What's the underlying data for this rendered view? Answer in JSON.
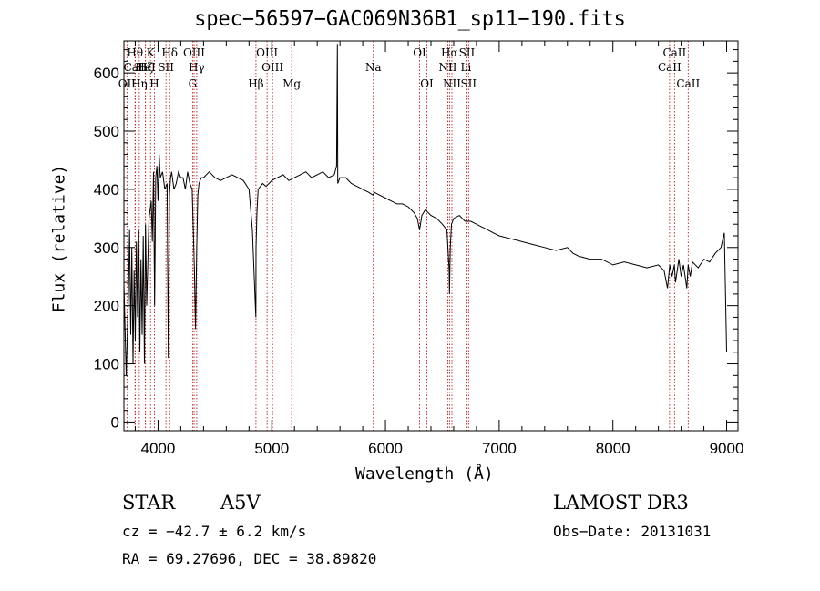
{
  "chart_data": {
    "type": "line",
    "title": "spec−56597−GAC069N36B1_sp11−190.fits",
    "xlabel": "Wavelength (Å)",
    "ylabel": "Flux (relative)",
    "xlim": [
      3700,
      9100
    ],
    "ylim": [
      -15,
      655
    ],
    "x_ticks": [
      4000,
      5000,
      6000,
      7000,
      8000,
      9000
    ],
    "y_ticks": [
      0,
      100,
      200,
      300,
      400,
      500,
      600
    ],
    "grid": false,
    "line_color": "#000000",
    "marker_color": "#b22222",
    "series": [
      {
        "x": [
          3700,
          3720,
          3740,
          3750,
          3760,
          3770,
          3780,
          3790,
          3800,
          3810,
          3820,
          3830,
          3840,
          3850,
          3860,
          3870,
          3880,
          3890,
          3900,
          3920,
          3940,
          3950,
          3960,
          3970,
          3980,
          3990,
          4000,
          4010,
          4020,
          4040,
          4060,
          4080,
          4090,
          4100,
          4110,
          4120,
          4140,
          4160,
          4180,
          4200,
          4220,
          4240,
          4260,
          4280,
          4300,
          4320,
          4330,
          4340,
          4350,
          4360,
          4380,
          4400,
          4450,
          4500,
          4550,
          4600,
          4650,
          4700,
          4750,
          4800,
          4830,
          4850,
          4860,
          4862,
          4870,
          4880,
          4900,
          4920,
          4950,
          5000,
          5050,
          5100,
          5150,
          5200,
          5250,
          5300,
          5350,
          5400,
          5450,
          5500,
          5550,
          5570,
          5577,
          5580,
          5600,
          5650,
          5700,
          5750,
          5800,
          5850,
          5890,
          5900,
          5950,
          6000,
          6050,
          6100,
          6150,
          6200,
          6250,
          6280,
          6300,
          6320,
          6350,
          6400,
          6450,
          6500,
          6540,
          6560,
          6563,
          6570,
          6580,
          6600,
          6650,
          6700,
          6750,
          6800,
          6850,
          6900,
          6950,
          7000,
          7100,
          7200,
          7300,
          7400,
          7500,
          7600,
          7650,
          7700,
          7800,
          7900,
          8000,
          8100,
          8200,
          8300,
          8400,
          8450,
          8480,
          8500,
          8520,
          8540,
          8550,
          8580,
          8600,
          8620,
          8650,
          8662,
          8680,
          8700,
          8750,
          8800,
          8850,
          8900,
          8950,
          8980,
          9000
        ],
        "y": [
          240,
          80,
          220,
          330,
          150,
          300,
          100,
          260,
          140,
          310,
          180,
          330,
          120,
          280,
          150,
          320,
          100,
          340,
          200,
          350,
          380,
          310,
          430,
          200,
          420,
          440,
          380,
          460,
          420,
          430,
          400,
          410,
          110,
          390,
          420,
          430,
          400,
          410,
          430,
          420,
          420,
          400,
          430,
          410,
          400,
          260,
          160,
          300,
          390,
          410,
          420,
          420,
          430,
          420,
          415,
          420,
          425,
          420,
          415,
          400,
          330,
          230,
          180,
          300,
          360,
          400,
          405,
          410,
          405,
          415,
          420,
          425,
          415,
          420,
          425,
          430,
          420,
          425,
          430,
          420,
          425,
          440,
          650,
          410,
          420,
          420,
          410,
          405,
          400,
          395,
          390,
          395,
          390,
          385,
          380,
          375,
          375,
          370,
          360,
          350,
          330,
          355,
          365,
          355,
          350,
          340,
          330,
          260,
          220,
          300,
          340,
          350,
          355,
          345,
          345,
          340,
          335,
          330,
          325,
          320,
          315,
          310,
          305,
          300,
          295,
          300,
          290,
          285,
          280,
          280,
          270,
          275,
          270,
          265,
          270,
          260,
          230,
          270,
          250,
          270,
          240,
          280,
          250,
          270,
          230,
          270,
          250,
          275,
          265,
          280,
          275,
          290,
          300,
          325,
          120
        ]
      }
    ],
    "line_markers": [
      {
        "name": "Hθ",
        "x": 3798,
        "row": 1
      },
      {
        "name": "CaII",
        "x": 3800,
        "row": 2
      },
      {
        "name": "OII",
        "x": 3727,
        "row": 3
      },
      {
        "name": "Hη",
        "x": 3835,
        "row": 3
      },
      {
        "name": "Hζ",
        "x": 3889,
        "row": 2
      },
      {
        "name": "HeI",
        "x": 3889,
        "row": 2
      },
      {
        "name": "K",
        "x": 3934,
        "row": 1
      },
      {
        "name": "H",
        "x": 3968,
        "row": 3
      },
      {
        "name": "SII",
        "x": 4070,
        "row": 2
      },
      {
        "name": "Hδ",
        "x": 4102,
        "row": 1
      },
      {
        "name": "OIII",
        "x": 4317,
        "row": 1
      },
      {
        "name": "Hγ",
        "x": 4340,
        "row": 2
      },
      {
        "name": "G",
        "x": 4304,
        "row": 3
      },
      {
        "name": "Hβ",
        "x": 4861,
        "row": 3
      },
      {
        "name": "OIII",
        "x": 4959,
        "row": 1
      },
      {
        "name": "OIII",
        "x": 5007,
        "row": 2
      },
      {
        "name": "Mg",
        "x": 5175,
        "row": 3
      },
      {
        "name": "Na",
        "x": 5893,
        "row": 2
      },
      {
        "name": "OI",
        "x": 6300,
        "row": 1
      },
      {
        "name": "OI",
        "x": 6364,
        "row": 3
      },
      {
        "name": "NII",
        "x": 6548,
        "row": 2
      },
      {
        "name": "Hα",
        "x": 6563,
        "row": 1
      },
      {
        "name": "NII",
        "x": 6584,
        "row": 3
      },
      {
        "name": "SII",
        "x": 6716,
        "row": 1
      },
      {
        "name": "Li",
        "x": 6708,
        "row": 2
      },
      {
        "name": "SII",
        "x": 6731,
        "row": 3
      },
      {
        "name": "CaII",
        "x": 8498,
        "row": 2
      },
      {
        "name": "CaII",
        "x": 8542,
        "row": 1
      },
      {
        "name": "CaII",
        "x": 8662,
        "row": 3
      }
    ]
  },
  "info": {
    "obj_class": "STAR",
    "subclass": "A5V",
    "survey": "LAMOST DR3",
    "cz": "cz = −42.7 ± 6.2 km/s",
    "obs_date": "Obs−Date: 20131031",
    "radec": "RA =  69.27696, DEC =  38.89820"
  }
}
